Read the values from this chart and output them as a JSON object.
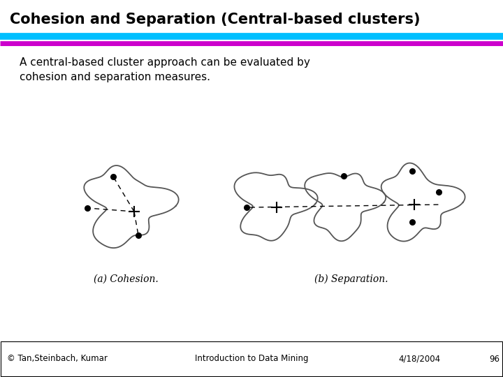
{
  "title": "Cohesion and Separation (Central-based clusters)",
  "subtitle": "A central-based cluster approach can be evaluated by\ncohesion and separation measures.",
  "line1_color": "#00BFFF",
  "line2_color": "#CC00CC",
  "footer_left": "© Tan,Steinbach, Kumar",
  "footer_center": "Introduction to Data Mining",
  "footer_right": "4/18/2004",
  "footer_page": "96",
  "label_a": "(a) Cohesion.",
  "label_b": "(b) Separation.",
  "bg_color": "#ffffff",
  "blob_color": "#555555"
}
